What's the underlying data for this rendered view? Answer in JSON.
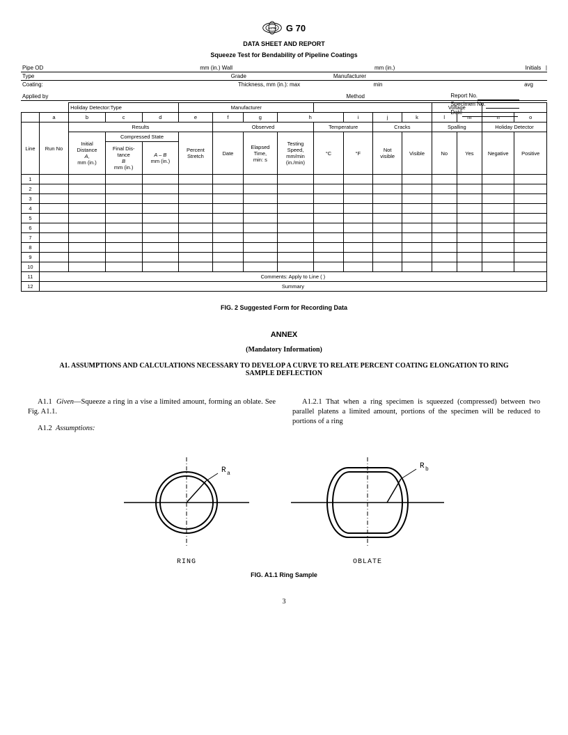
{
  "standard": "G 70",
  "title1": "DATA SHEET AND REPORT",
  "title2": "Squeeze Test for Bendability of Pipeline Coatings",
  "reportbox": {
    "report_no": "Report No.",
    "specimen_no": "Specimen No.",
    "date": "Date"
  },
  "meta": {
    "pipe_od": "Pipe OD",
    "mm_in_wall": "mm (in.) Wall",
    "mm_in": "mm (in.)",
    "initials": "Initials",
    "type": "Type",
    "grade": "Grade",
    "manufacturer": "Manufacturer",
    "coating": "Coating:",
    "thickness": "Thickness, mm (in.):",
    "max": "max",
    "min": "min",
    "avg": "avg",
    "applied_by": "Applied by",
    "method": "Method",
    "holiday_detector_type": "Holiday Detector:Type",
    "voltage": "Voltage"
  },
  "letters": [
    "a",
    "b",
    "c",
    "d",
    "e",
    "f",
    "g",
    "h",
    "i",
    "j",
    "k",
    "l",
    "m",
    "n",
    "o"
  ],
  "groups": {
    "results": "Results",
    "observed": "Observed",
    "temperature": "Temperature",
    "cracks": "Cracks",
    "spalling": "Spalling",
    "holiday_detector": "Holiday Detector",
    "compressed_state": "Compressed State"
  },
  "cols": {
    "line": "Line",
    "run_no": "Run No",
    "initial_distance": "Initial Distance A, mm (in.)",
    "final_distance": "Final Distance B mm (in.)",
    "a_minus_b": "A – B mm (in.)",
    "percent_stretch": "Percent Stretch",
    "date": "Date",
    "elapsed_time": "Elapsed Time, min: s",
    "testing_speed": "Testing Speed, mm/min (in./min)",
    "deg_c": "°C",
    "deg_f": "°F",
    "not_visible": "Not visible",
    "visible": "Visible",
    "no": "No",
    "yes": "Yes",
    "negative": "Negative",
    "positive": "Positive"
  },
  "rows": [
    1,
    2,
    3,
    4,
    5,
    6,
    7,
    8,
    9,
    10
  ],
  "row11_label": "11",
  "row11_text": "Comments:   Apply to Line (     )",
  "row12_label": "12",
  "row12_text": "Summary",
  "fig2": "FIG. 2 Suggested Form for Recording Data",
  "annex": "ANNEX",
  "mandatory": "(Mandatory Information)",
  "a1heading": "A1.  ASSUMPTIONS AND CALCULATIONS NECESSARY TO DEVELOP A CURVE TO RELATE PERCENT COATING ELONGATION TO RING SAMPLE DEFLECTION",
  "p1": "A1.1  Given—Squeeze a ring in a vise a limited amount, forming an oblate. See Fig. A1.1.",
  "p2": "A1.2  Assumptions:",
  "p3": "A1.2.1 That when a ring specimen is squeezed (compressed) between two parallel platens a limited amount, portions of the specimen will be reduced to portions of a ring",
  "ring_label": "RING",
  "oblate_label": "OBLATE",
  "ra": "Rₐ",
  "rb": "R_b",
  "figA11": "FIG. A1.1 Ring Sample",
  "page": "3",
  "colors": {
    "text": "#000000",
    "bg": "#ffffff",
    "border": "#000000"
  }
}
